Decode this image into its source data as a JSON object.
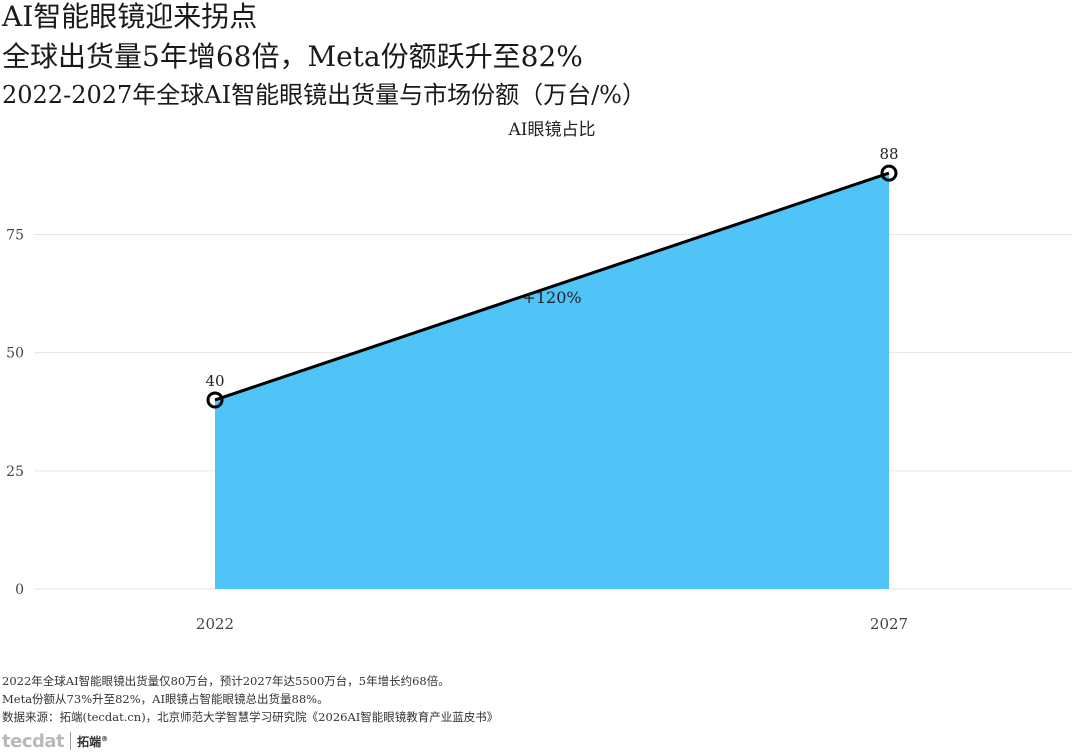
{
  "header": {
    "headline": "AI智能眼镜迎来拐点",
    "subheadline": "全球出货量5年增68倍，Meta份额跃升至82%",
    "chart_caption": "2022-2027年全球AI智能眼镜出货量与市场份额（万台/%）"
  },
  "chart_data": {
    "type": "area",
    "title": "AI眼镜占比",
    "categories": [
      "2022",
      "2027"
    ],
    "series": [
      {
        "name": "",
        "values": [
          40,
          88
        ]
      }
    ],
    "data_labels": [
      "40",
      "88"
    ],
    "annotation": "+120%",
    "yticks": [
      "0",
      "25",
      "50",
      "75"
    ],
    "ylim": [
      0,
      95
    ],
    "grid": "horizontal",
    "fill_color": "#4CC3F7",
    "line_color": "#000000"
  },
  "footer": {
    "notes": [
      "2022年全球AI智能眼镜出货量仅80万台，预计2027年达5500万台，5年增长约68倍。",
      "Meta份额从73%升至82%，AI眼镜占智能眼镜总出货量88%。",
      "数据来源：拓端(tecdat.cn)，北京师范大学智慧学习研究院《2026AI智能眼镜教育产业蓝皮书》"
    ],
    "logo_en": "tecdat",
    "logo_cn": "拓端",
    "logo_mark": "®"
  }
}
